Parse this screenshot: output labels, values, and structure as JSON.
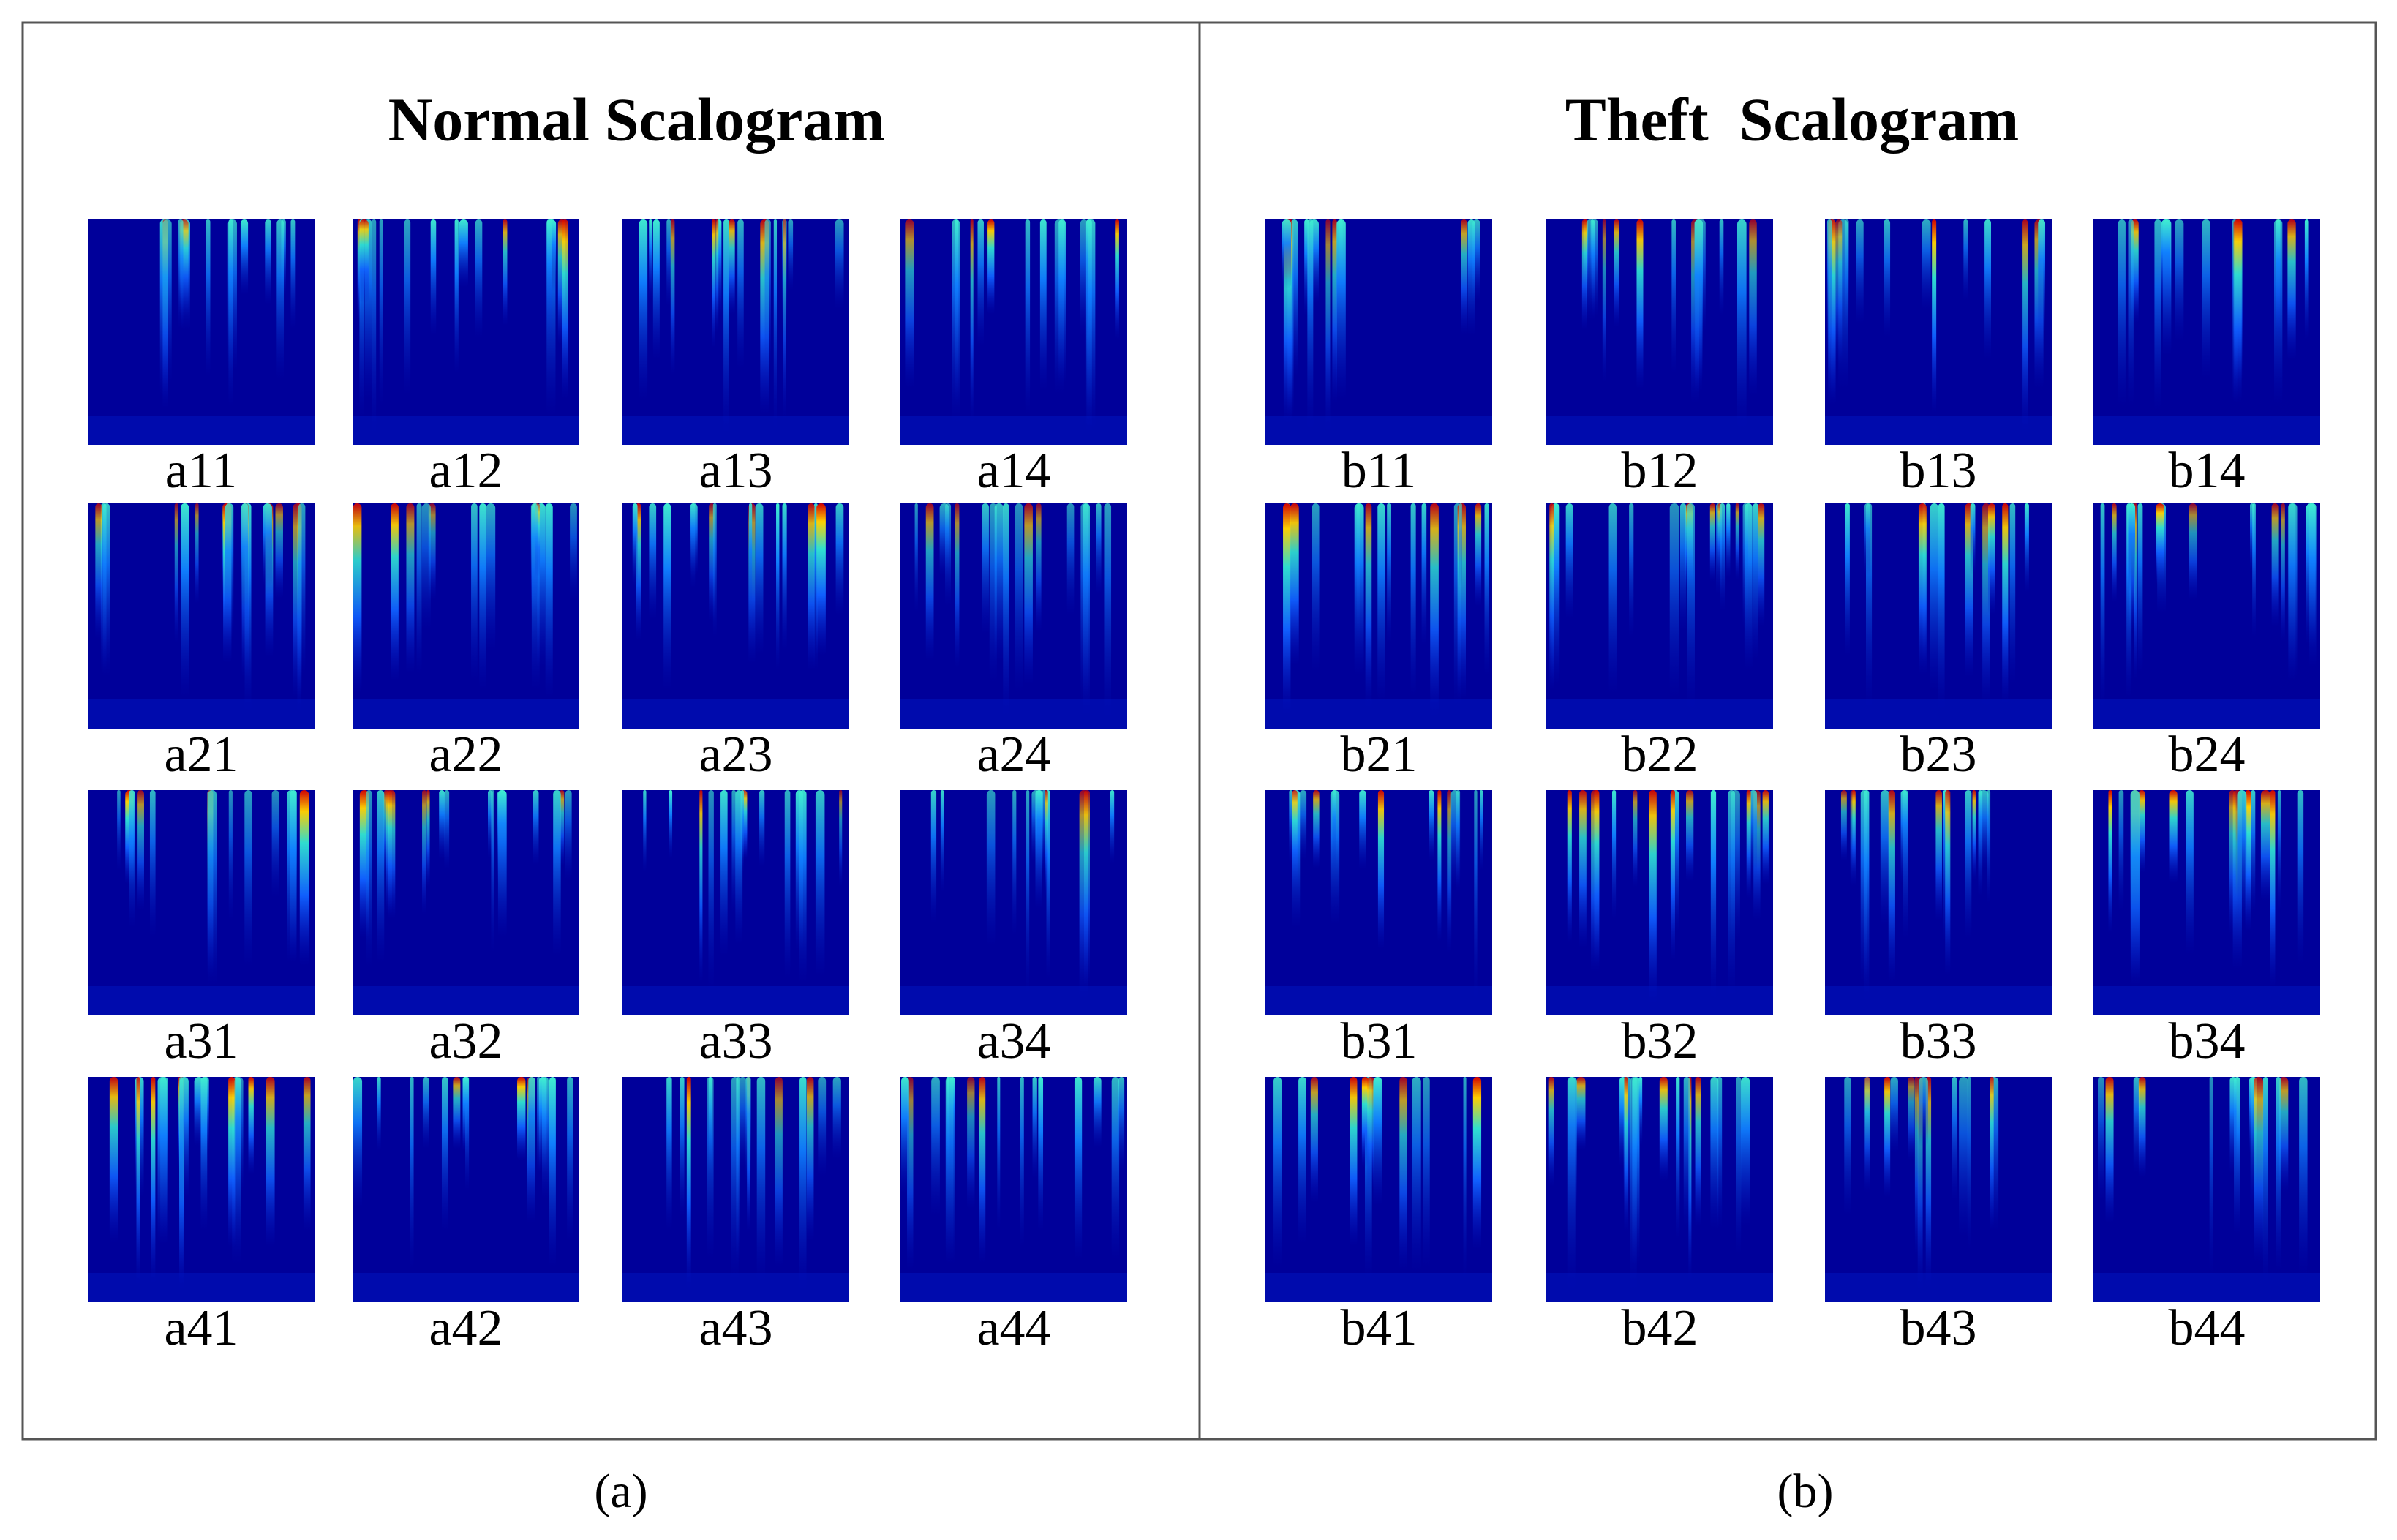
{
  "panels": [
    {
      "title": "Normal Scalogram",
      "caption": "(a)",
      "cells": [
        "a11",
        "a12",
        "a13",
        "a14",
        "a21",
        "a22",
        "a23",
        "a24",
        "a31",
        "a32",
        "a33",
        "a34",
        "a41",
        "a42",
        "a43",
        "a44"
      ]
    },
    {
      "title": "Theft  Scalogram",
      "caption": "(b)",
      "cells": [
        "b11",
        "b12",
        "b13",
        "b14",
        "b21",
        "b22",
        "b23",
        "b24",
        "b31",
        "b32",
        "b33",
        "b34",
        "b41",
        "b42",
        "b43",
        "b44"
      ]
    }
  ]
}
